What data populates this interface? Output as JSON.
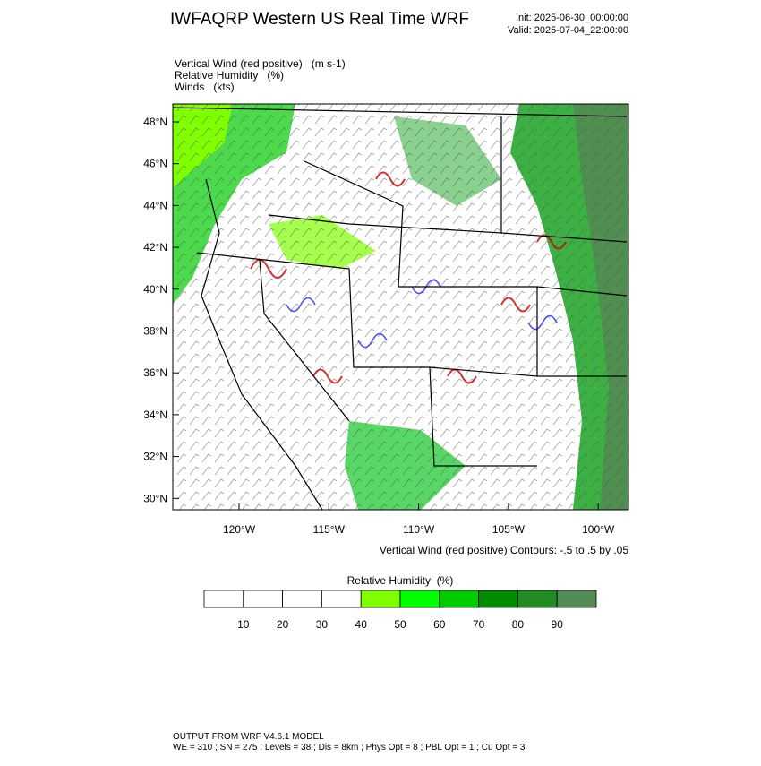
{
  "header": {
    "title": "IWFAQRP Western US Real Time WRF",
    "init": "Init: 2025-06-30_00:00:00",
    "valid": "Valid: 2025-07-04_22:00:00"
  },
  "fields": [
    "Vertical Wind (red positive)   (m s-1)",
    "Relative Humidity   (%)",
    "Winds   (kts)"
  ],
  "map": {
    "lat_labels": [
      "48°N",
      "46°N",
      "44°N",
      "42°N",
      "40°N",
      "38°N",
      "36°N",
      "34°N",
      "32°N",
      "30°N"
    ],
    "lon_labels": [
      "120°W",
      "115°W",
      "110°W",
      "105°W",
      "100°W"
    ],
    "contour_note": "Vertical Wind (red positive) Contours: -.5 to .5 by .05"
  },
  "colorbar": {
    "title": "Relative Humidity  (%)",
    "colors": [
      "#ffffff",
      "#ffffff",
      "#ffffff",
      "#ffffff",
      "#7fff00",
      "#00ff00",
      "#00cd00",
      "#008b00",
      "#228b22",
      "#548b54"
    ],
    "labels": [
      10,
      20,
      30,
      40,
      50,
      60,
      70,
      80,
      90
    ]
  },
  "footer": [
    "OUTPUT FROM WRF V4.6.1 MODEL",
    "WE = 310 ; SN = 275 ; Levels = 38 ; Dis = 8km ; Phys Opt = 8 ; PBL Opt = 1 ; Cu Opt = 3"
  ]
}
